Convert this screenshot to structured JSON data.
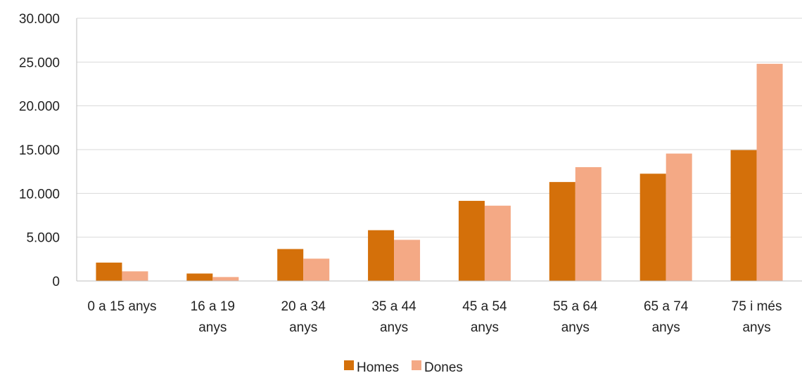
{
  "chart_data": {
    "type": "bar",
    "categories": [
      [
        "0 a 15 anys"
      ],
      [
        "16 a 19",
        "anys"
      ],
      [
        "20 a 34",
        "anys"
      ],
      [
        "35 a 44",
        "anys"
      ],
      [
        "45 a 54",
        "anys"
      ],
      [
        "55 a 64",
        "anys"
      ],
      [
        "65 a 74",
        "anys"
      ],
      [
        "75 i més",
        "anys"
      ]
    ],
    "series": [
      {
        "name": "Homes",
        "color": "#d4700a",
        "values": [
          2100,
          850,
          3650,
          5800,
          9150,
          11300,
          12250,
          14950
        ]
      },
      {
        "name": "Dones",
        "color": "#f4a985",
        "values": [
          1100,
          450,
          2550,
          4700,
          8600,
          13000,
          14550,
          24800
        ]
      }
    ],
    "yticks": [
      "0",
      "5.000",
      "10.000",
      "15.000",
      "20.000",
      "25.000",
      "30.000"
    ],
    "ylim": [
      0,
      30000
    ],
    "grid": true,
    "legend_position": "bottom"
  }
}
